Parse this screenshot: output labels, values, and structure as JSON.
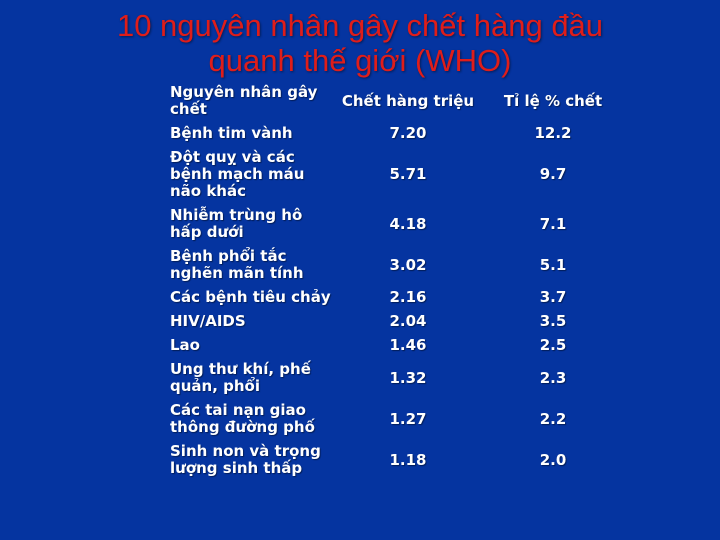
{
  "slide": {
    "title": {
      "line1": "10 nguyên nhân gây chết hàng đầu",
      "line2": "quanh thế giới (WHO)"
    }
  },
  "colors": {
    "background": "#0534A0",
    "title_red": "#DF1D1A",
    "table_text": "#FFFFFF"
  },
  "chart_data": {
    "type": "table",
    "title": "10 nguyên nhân gây chết hàng đầu quanh thế giới (WHO)",
    "columns": [
      "Nguyên nhân gây chết",
      "Chết hàng triệu",
      "Tỉ lệ % chết"
    ],
    "rows": [
      {
        "cause": "Bệnh tim vành",
        "deaths_millions": "7.20",
        "percent_of_deaths": "12.2"
      },
      {
        "cause": "Đột quỵ và các bệnh mạch máu não khác",
        "deaths_millions": "5.71",
        "percent_of_deaths": "9.7"
      },
      {
        "cause": "Nhiễm trùng hô hấp dưới",
        "deaths_millions": "4.18",
        "percent_of_deaths": "7.1"
      },
      {
        "cause": "Bệnh phổi tắc nghẽn mãn tính",
        "deaths_millions": "3.02",
        "percent_of_deaths": "5.1"
      },
      {
        "cause": "Các bệnh tiêu chảy",
        "deaths_millions": "2.16",
        "percent_of_deaths": "3.7"
      },
      {
        "cause": "HIV/AIDS",
        "deaths_millions": "2.04",
        "percent_of_deaths": "3.5"
      },
      {
        "cause": "Lao",
        "deaths_millions": "1.46",
        "percent_of_deaths": "2.5"
      },
      {
        "cause": "Ung thư khí, phế quản, phổi",
        "deaths_millions": "1.32",
        "percent_of_deaths": "2.3"
      },
      {
        "cause": "Các tai nạn giao thông đường phố",
        "deaths_millions": "1.27",
        "percent_of_deaths": "2.2"
      },
      {
        "cause": "Sinh non và trọng lượng sinh thấp",
        "deaths_millions": "1.18",
        "percent_of_deaths": "2.0"
      }
    ]
  }
}
